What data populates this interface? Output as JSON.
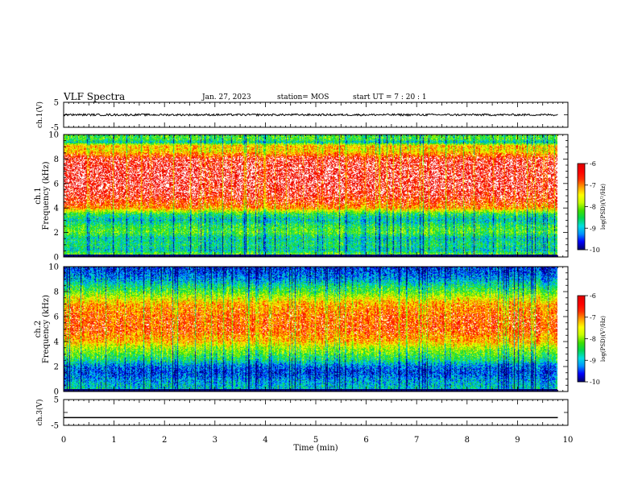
{
  "header": {
    "title": "VLF Spectra",
    "date": "Jan. 27, 2023",
    "station": "station= MOS",
    "start_time": "start  UT =   7 : 20 : 1"
  },
  "chart_data": [
    {
      "type": "line",
      "panel": "ch1-waveform",
      "ylabel": "ch.1(V)",
      "ylim": [
        -5,
        5
      ],
      "yticks": [
        "5",
        "-5"
      ],
      "xlim": [
        0,
        10
      ],
      "series": [
        {
          "x": [
            0,
            9.8
          ],
          "y": [
            0,
            0
          ],
          "noise": "small"
        }
      ],
      "color": "#000000"
    },
    {
      "type": "heatmap",
      "panel": "ch1-spectrogram",
      "ylabel": "ch.1 Frequency (kHz)",
      "ylim": [
        0,
        10
      ],
      "yticks": [
        "0",
        "2",
        "4",
        "6",
        "8",
        "10"
      ],
      "xlim": [
        0,
        10
      ],
      "x_data_end": 9.8,
      "profile_khz": [
        0,
        0.5,
        1,
        1.5,
        2,
        2.5,
        3,
        3.5,
        4,
        5,
        6,
        7,
        8,
        8.7,
        9.1,
        9.4,
        9.7,
        10
      ],
      "profile_level": [
        0.55,
        0.3,
        0.35,
        0.3,
        0.45,
        0.4,
        0.28,
        0.4,
        0.75,
        0.92,
        0.97,
        0.97,
        0.93,
        0.65,
        0.7,
        0.3,
        0.45,
        0.4
      ],
      "colorbar": {
        "label": "log(PSD)(V²/Hz)",
        "ticks": [
          "-6",
          "-7",
          "-8",
          "-9",
          "-10"
        ],
        "range": [
          -10,
          -6
        ]
      }
    },
    {
      "type": "heatmap",
      "panel": "ch2-spectrogram",
      "ylabel": "ch.2 Frequency (kHz)",
      "ylim": [
        0,
        10
      ],
      "yticks": [
        "0",
        "2",
        "4",
        "6",
        "8",
        "10"
      ],
      "xlim": [
        0,
        10
      ],
      "x_data_end": 9.8,
      "profile_khz": [
        0,
        0.6,
        1,
        1.5,
        2,
        2.5,
        3,
        3.5,
        4,
        5,
        6,
        7,
        7.5,
        8,
        8.5,
        9,
        9.5,
        10
      ],
      "profile_level": [
        0.3,
        0.25,
        0.2,
        0.12,
        0.18,
        0.35,
        0.45,
        0.55,
        0.7,
        0.82,
        0.8,
        0.72,
        0.6,
        0.45,
        0.35,
        0.22,
        0.15,
        0.1
      ],
      "colorbar": {
        "label": "log(PSD)(V²/Hz)",
        "ticks": [
          "-6",
          "-7",
          "-8",
          "-9",
          "-10"
        ],
        "range": [
          -10,
          -6
        ]
      }
    },
    {
      "type": "line",
      "panel": "ch3-waveform",
      "ylabel": "ch.3(V)",
      "ylim": [
        -5,
        5
      ],
      "yticks": [
        "5",
        "-5"
      ],
      "xlim": [
        0,
        10
      ],
      "series": [
        {
          "x": [
            0,
            9.8
          ],
          "y": [
            -2,
            -2
          ]
        }
      ],
      "color": "#000000"
    }
  ],
  "xaxis": {
    "label": "Time (min)",
    "ticks": [
      "0",
      "1",
      "2",
      "3",
      "4",
      "5",
      "6",
      "7",
      "8",
      "9",
      "10"
    ]
  },
  "colormap": [
    "#000070",
    "#0000ff",
    "#0096ff",
    "#00e0e0",
    "#00d850",
    "#40e000",
    "#c8ff00",
    "#ffff00",
    "#ffa000",
    "#ff3000",
    "#ff0000",
    "#e00000"
  ]
}
